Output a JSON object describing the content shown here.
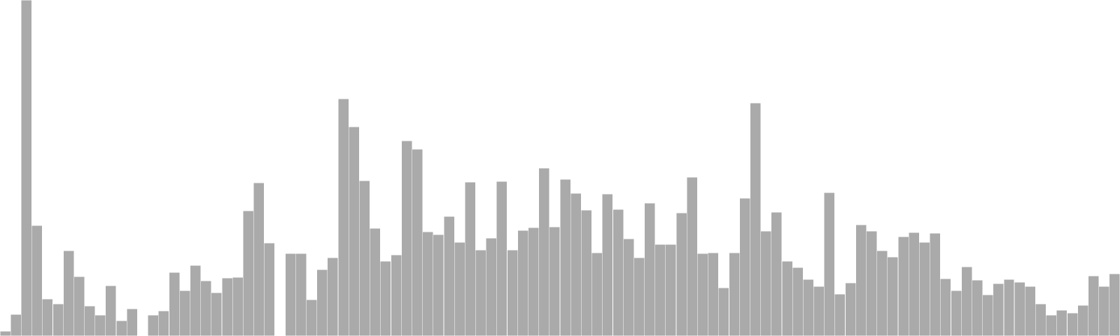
{
  "chart_data": {
    "type": "bar",
    "title": "",
    "xlabel": "",
    "ylabel": "",
    "ylim": [
      0,
      480
    ],
    "grid": false,
    "legend": "none",
    "bar_color": "#aaaaaa",
    "bar_edge_color": "#ffffff",
    "values": [
      7,
      31,
      480,
      158,
      53,
      46,
      122,
      85,
      43,
      30,
      72,
      22,
      39,
      0,
      30,
      36,
      91,
      65,
      101,
      79,
      62,
      83,
      84,
      179,
      219,
      133,
      0,
      118,
      118,
      52,
      95,
      112,
      339,
      299,
      222,
      154,
      107,
      116,
      279,
      267,
      149,
      145,
      171,
      134,
      220,
      123,
      140,
      221,
      123,
      151,
      155,
      240,
      156,
      224,
      204,
      180,
      119,
      203,
      181,
      139,
      112,
      190,
      131,
      131,
      176,
      227,
      118,
      119,
      69,
      119,
      197,
      333,
      150,
      177,
      107,
      98,
      81,
      71,
      205,
      60,
      76,
      159,
      150,
      122,
      113,
      142,
      148,
      134,
      147,
      82,
      65,
      99,
      80,
      59,
      75,
      81,
      77,
      71,
      46,
      30,
      37,
      33,
      44,
      86,
      71,
      89
    ]
  }
}
